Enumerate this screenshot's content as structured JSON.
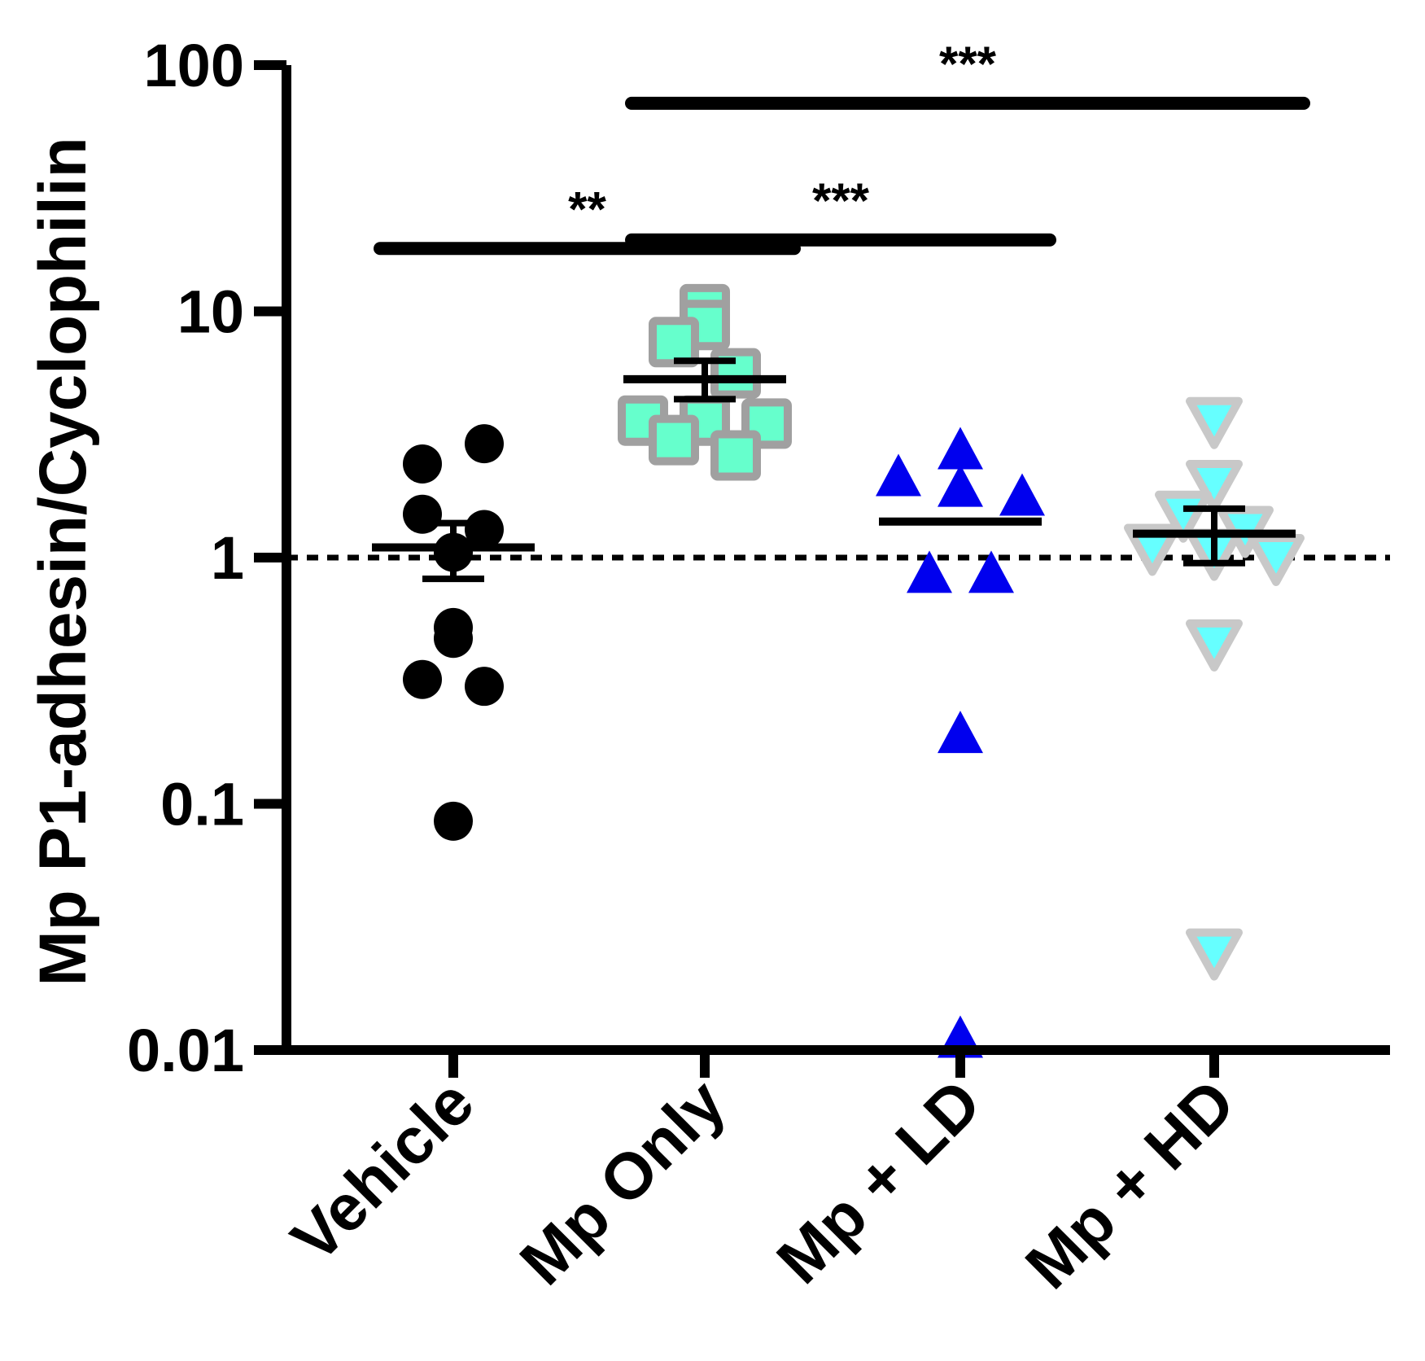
{
  "chart_data": {
    "type": "scatter",
    "title": "",
    "xlabel": "",
    "ylabel": "Mp P1-adhesin/Cyclophilin",
    "yscale": "log",
    "ylim": [
      0.01,
      100
    ],
    "yticks": [
      "100",
      "10",
      "1",
      "0.1",
      "0.01"
    ],
    "ytick_values": [
      100,
      10,
      1,
      0.1,
      0.01
    ],
    "categories": [
      "Vehicle",
      "Mp Only",
      "Mp + LD",
      "Mp + HD"
    ],
    "reference_line": {
      "value": 1,
      "style": "dotted"
    },
    "series": [
      {
        "name": "Vehicle",
        "marker": "circle",
        "fill": "#000000",
        "stroke": "#000000",
        "values": [
          2.4,
          2.9,
          1.5,
          1.3,
          1.05,
          0.52,
          0.47,
          0.32,
          0.3,
          0.085
        ],
        "mean": 1.1,
        "sem_low": 0.82,
        "sem_high": 1.38
      },
      {
        "name": "Mp Only",
        "marker": "square",
        "fill": "#66ffcc",
        "stroke": "#a0a0a0",
        "values": [
          10.2,
          8.8,
          7.5,
          5.6,
          3.6,
          3.6,
          3.5,
          3.0,
          2.6
        ],
        "mean": 5.3,
        "sem_low": 4.4,
        "sem_high": 6.3
      },
      {
        "name": "Mp + LD",
        "marker": "triangle-up",
        "fill": "#0000ee",
        "stroke": "#0000ee",
        "values": [
          2.7,
          2.1,
          1.9,
          1.75,
          0.85,
          0.85,
          0.19,
          0.011
        ],
        "mean": 1.4,
        "sem_low": 1.4,
        "sem_high": 1.4
      },
      {
        "name": "Mp + HD",
        "marker": "triangle-down",
        "fill": "#66ffff",
        "stroke": "#c8c8c8",
        "values": [
          3.6,
          2.0,
          1.5,
          1.3,
          1.1,
          1.05,
          1.0,
          0.45,
          0.025
        ],
        "mean": 1.25,
        "sem_low": 0.95,
        "sem_high": 1.58
      }
    ],
    "significance": [
      {
        "from": "Vehicle",
        "to": "Mp Only",
        "label": "**",
        "y": 18
      },
      {
        "from": "Mp Only",
        "to": "Mp + LD",
        "label": "***",
        "y": 19.5
      },
      {
        "from": "Mp Only",
        "to": "Mp + HD",
        "label": "***",
        "y": 70
      }
    ]
  }
}
